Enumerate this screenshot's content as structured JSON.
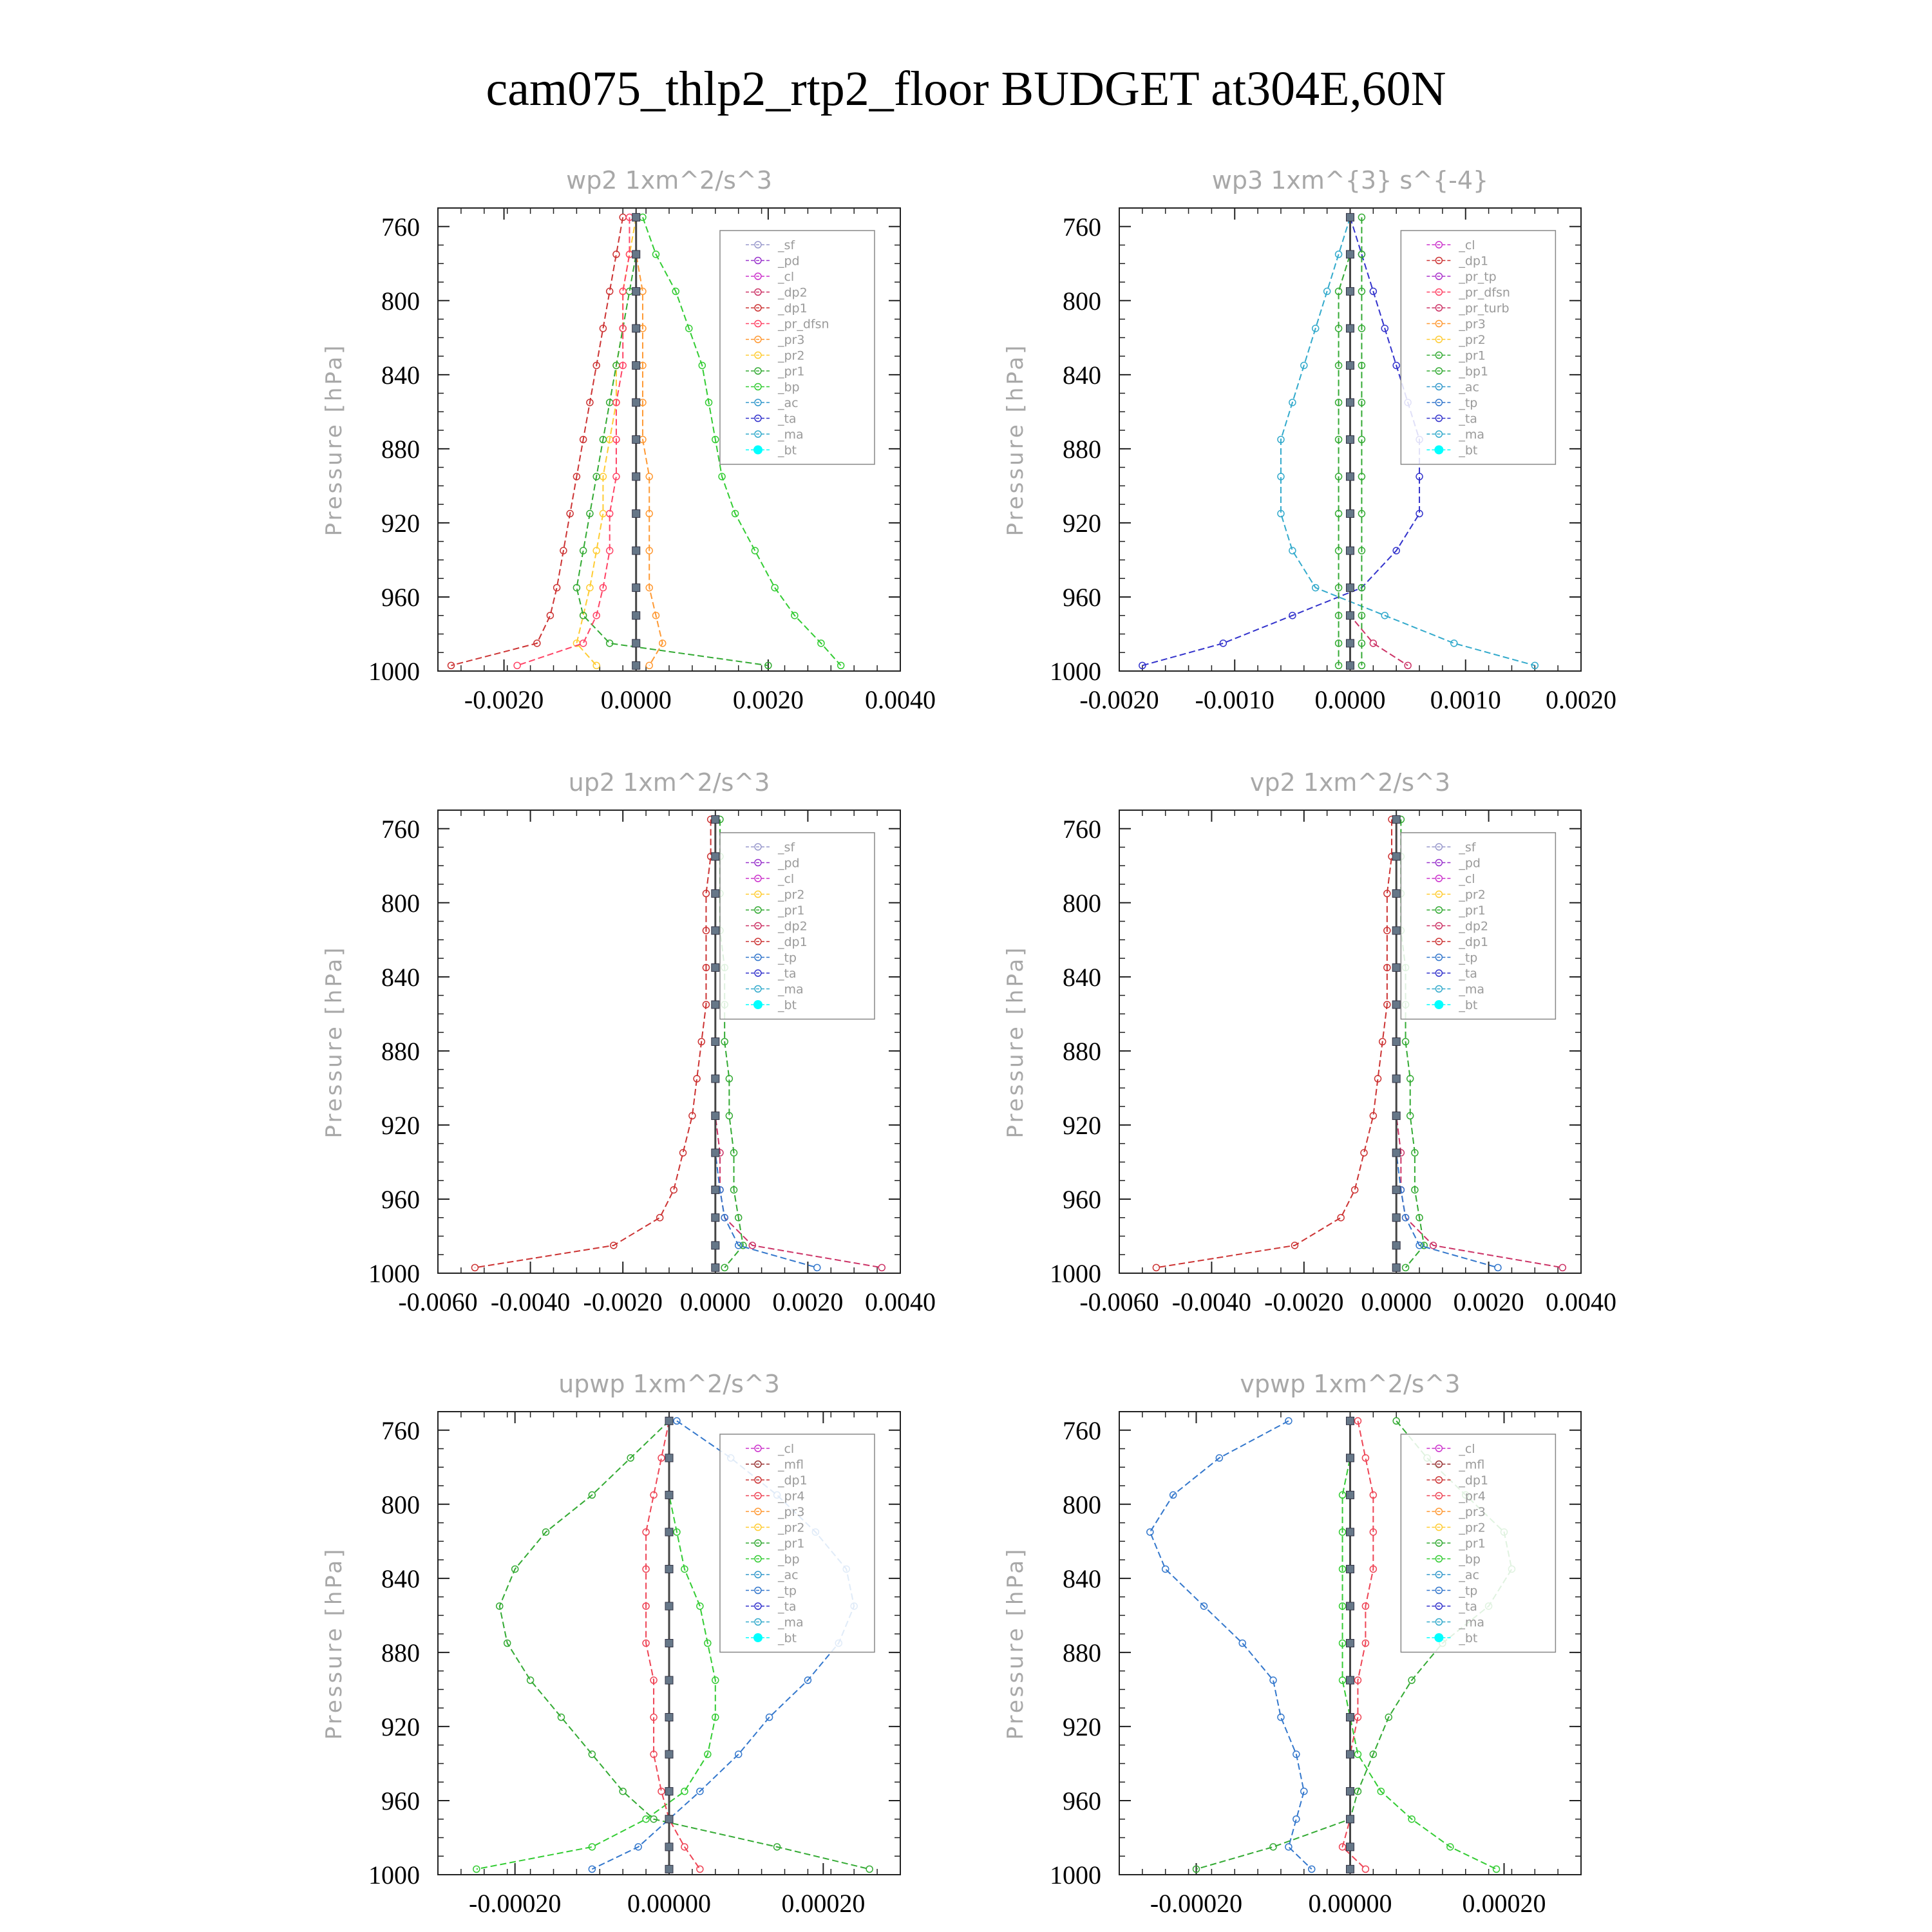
{
  "figure_title": "cam075_thlp2_rtp2_floor  BUDGET at304E,60N",
  "colors": {
    "_sf": "#9999cc",
    "_pd": "#9933cc",
    "_cl": "#cc33cc",
    "_dp2": "#cc3366",
    "_dp1": "#cc3333",
    "_pr_dfsn": "#ff4466",
    "_pr_tp": "#aa33cc",
    "_pr_turb": "#cc3366",
    "_pr4": "#ee4455",
    "_pr3": "#ff9933",
    "_pr2": "#ffcc33",
    "_pr1": "#33aa33",
    "_bp": "#33cc33",
    "_bp1": "#33aa33",
    "_ac": "#3399cc",
    "_tp": "#3377cc",
    "_ta": "#3333cc",
    "_ma": "#33aacc",
    "_bt": "#00ffff",
    "_mfl": "#993333"
  },
  "chart_data": [
    {
      "type": "line",
      "title": "wp2   1xm^2/s^3",
      "ylabel": "Pressure [hPa]",
      "ylim": [
        1000,
        750
      ],
      "xlim": [
        -0.003,
        0.004
      ],
      "yticks": [
        "760",
        "800",
        "840",
        "880",
        "920",
        "960",
        "1000"
      ],
      "xticks": [
        "-0.0020",
        "0.0000",
        "0.0020",
        "0.0040"
      ],
      "legend": [
        "_sf",
        "_pd",
        "_cl",
        "_dp2",
        "_dp1",
        "_pr_dfsn",
        "_pr3",
        "_pr2",
        "_pr1",
        "_bp",
        "_ac",
        "_ta",
        "_ma",
        "_bt"
      ],
      "series": [
        {
          "name": "_dp1",
          "x": [
            -0.0002,
            -0.0003,
            -0.0004,
            -0.0005,
            -0.0006,
            -0.0007,
            -0.0008,
            -0.0009,
            -0.001,
            -0.0011,
            -0.0012,
            -0.0013,
            -0.0015,
            -0.0028
          ]
        },
        {
          "name": "_pr2",
          "x": [
            0.0,
            -0.0001,
            -0.0002,
            -0.0002,
            -0.0003,
            -0.0003,
            -0.0004,
            -0.0005,
            -0.0005,
            -0.0006,
            -0.0007,
            -0.0008,
            -0.0009,
            -0.0006
          ]
        },
        {
          "name": "_pr3",
          "x": [
            0.0,
            0.0,
            0.0001,
            0.0001,
            0.0001,
            0.0001,
            0.0001,
            0.0002,
            0.0002,
            0.0002,
            0.0002,
            0.0003,
            0.0004,
            0.0002
          ]
        },
        {
          "name": "_bp",
          "x": [
            0.0001,
            0.0003,
            0.0006,
            0.0008,
            0.001,
            0.0011,
            0.0012,
            0.0013,
            0.0015,
            0.0018,
            0.0021,
            0.0024,
            0.0028,
            0.0031
          ]
        },
        {
          "name": "_pr1",
          "x": [
            0.0,
            0.0,
            -0.0001,
            -0.0002,
            -0.0003,
            -0.0004,
            -0.0005,
            -0.0006,
            -0.0007,
            -0.0008,
            -0.0009,
            -0.0008,
            -0.0004,
            0.002
          ]
        },
        {
          "name": "_pr_dfsn",
          "x": [
            -0.0001,
            -0.0001,
            -0.0002,
            -0.0002,
            -0.0002,
            -0.0003,
            -0.0003,
            -0.0003,
            -0.0004,
            -0.0004,
            -0.0005,
            -0.0006,
            -0.0008,
            -0.0018
          ]
        },
        {
          "name": "_bt",
          "x": [
            0,
            0,
            0,
            0,
            0,
            0,
            0,
            0,
            0,
            0,
            0,
            0,
            0,
            0
          ]
        }
      ]
    },
    {
      "type": "line",
      "title": "wp3   1xm^{3} s^{-4}",
      "ylabel": "Pressure [hPa]",
      "ylim": [
        1000,
        750
      ],
      "xlim": [
        -0.002,
        0.002
      ],
      "yticks": [
        "760",
        "800",
        "840",
        "880",
        "920",
        "960",
        "1000"
      ],
      "xticks": [
        "-0.0020",
        "-0.0010",
        "0.0000",
        "0.0010",
        "0.0020"
      ],
      "legend": [
        "_cl",
        "_dp1",
        "_pr_tp",
        "_pr_dfsn",
        "_pr_turb",
        "_pr3",
        "_pr2",
        "_pr1",
        "_bp1",
        "_ac",
        "_tp",
        "_ta",
        "_ma",
        "_bt"
      ],
      "series": [
        {
          "name": "_ta",
          "x": [
            0.0,
            0.0001,
            0.0002,
            0.0003,
            0.0004,
            0.0005,
            0.0006,
            0.0006,
            0.0006,
            0.0004,
            0.0001,
            -0.0005,
            -0.0011,
            -0.0018
          ]
        },
        {
          "name": "_ma",
          "x": [
            0.0,
            -0.0001,
            -0.0002,
            -0.0003,
            -0.0004,
            -0.0005,
            -0.0006,
            -0.0006,
            -0.0006,
            -0.0005,
            -0.0003,
            0.0003,
            0.0009,
            0.0016
          ]
        },
        {
          "name": "_bp1",
          "x": [
            0.0001,
            0.0001,
            0.0001,
            0.0001,
            0.0001,
            0.0001,
            0.0001,
            0.0001,
            0.0001,
            0.0001,
            0.0001,
            0.0001,
            0.0001,
            0.0001
          ]
        },
        {
          "name": "_pr1",
          "x": [
            0.0,
            0.0,
            -0.0001,
            -0.0001,
            -0.0001,
            -0.0001,
            -0.0001,
            -0.0001,
            -0.0001,
            -0.0001,
            -0.0001,
            -0.0001,
            -0.0001,
            -0.0001
          ]
        },
        {
          "name": "_pr_turb",
          "x": [
            0.0,
            0.0,
            0.0,
            0.0,
            0.0,
            0.0,
            0.0,
            0.0,
            0.0,
            0.0,
            0.0,
            0.0,
            0.0002,
            0.0005
          ]
        },
        {
          "name": "_bt",
          "x": [
            0,
            0,
            0,
            0,
            0,
            0,
            0,
            0,
            0,
            0,
            0,
            0,
            0,
            0
          ]
        }
      ]
    },
    {
      "type": "line",
      "title": "up2   1xm^2/s^3",
      "ylabel": "Pressure [hPa]",
      "ylim": [
        1000,
        750
      ],
      "xlim": [
        -0.006,
        0.004
      ],
      "yticks": [
        "760",
        "800",
        "840",
        "880",
        "920",
        "960",
        "1000"
      ],
      "xticks": [
        "-0.0060",
        "-0.0040",
        "-0.0020",
        "0.0000",
        "0.0020",
        "0.0040"
      ],
      "legend": [
        "_sf",
        "_pd",
        "_cl",
        "_pr2",
        "_pr1",
        "_dp2",
        "_dp1",
        "_tp",
        "_ta",
        "_ma",
        "_bt"
      ],
      "series": [
        {
          "name": "_dp1",
          "x": [
            -0.0001,
            -0.0001,
            -0.0002,
            -0.0002,
            -0.0002,
            -0.0002,
            -0.0003,
            -0.0004,
            -0.0005,
            -0.0007,
            -0.0009,
            -0.0012,
            -0.0022,
            -0.0052
          ]
        },
        {
          "name": "_pr1",
          "x": [
            0.0001,
            0.0001,
            0.0001,
            0.0001,
            0.0002,
            0.0002,
            0.0002,
            0.0003,
            0.0003,
            0.0004,
            0.0004,
            0.0005,
            0.0006,
            0.0002
          ]
        },
        {
          "name": "_dp2",
          "x": [
            0.0,
            0.0,
            0.0,
            0.0,
            0.0,
            0.0,
            0.0,
            0.0,
            0.0,
            0.0001,
            0.0001,
            0.0002,
            0.0008,
            0.0036
          ]
        },
        {
          "name": "_tp",
          "x": [
            0.0,
            0.0,
            0.0,
            0.0,
            0.0,
            0.0,
            0.0,
            0.0,
            0.0,
            0.0,
            0.0001,
            0.0002,
            0.0005,
            0.0022
          ]
        },
        {
          "name": "_bt",
          "x": [
            0,
            0,
            0,
            0,
            0,
            0,
            0,
            0,
            0,
            0,
            0,
            0,
            0,
            0
          ]
        }
      ]
    },
    {
      "type": "line",
      "title": "vp2   1xm^2/s^3",
      "ylabel": "Pressure [hPa]",
      "ylim": [
        1000,
        750
      ],
      "xlim": [
        -0.006,
        0.004
      ],
      "yticks": [
        "760",
        "800",
        "840",
        "880",
        "920",
        "960",
        "1000"
      ],
      "xticks": [
        "-0.0060",
        "-0.0040",
        "-0.0020",
        "0.0000",
        "0.0020",
        "0.0040"
      ],
      "legend": [
        "_sf",
        "_pd",
        "_cl",
        "_pr2",
        "_pr1",
        "_dp2",
        "_dp1",
        "_tp",
        "_ta",
        "_ma",
        "_bt"
      ],
      "series": [
        {
          "name": "_dp1",
          "x": [
            -0.0001,
            -0.0001,
            -0.0002,
            -0.0002,
            -0.0002,
            -0.0002,
            -0.0003,
            -0.0004,
            -0.0005,
            -0.0007,
            -0.0009,
            -0.0012,
            -0.0022,
            -0.0052
          ]
        },
        {
          "name": "_pr1",
          "x": [
            0.0001,
            0.0001,
            0.0001,
            0.0001,
            0.0002,
            0.0002,
            0.0002,
            0.0003,
            0.0003,
            0.0004,
            0.0004,
            0.0005,
            0.0006,
            0.0002
          ]
        },
        {
          "name": "_dp2",
          "x": [
            0.0,
            0.0,
            0.0,
            0.0,
            0.0,
            0.0,
            0.0,
            0.0,
            0.0,
            0.0001,
            0.0001,
            0.0002,
            0.0008,
            0.0036
          ]
        },
        {
          "name": "_tp",
          "x": [
            0.0,
            0.0,
            0.0,
            0.0,
            0.0,
            0.0,
            0.0,
            0.0,
            0.0,
            0.0,
            0.0001,
            0.0002,
            0.0005,
            0.0022
          ]
        },
        {
          "name": "_bt",
          "x": [
            0,
            0,
            0,
            0,
            0,
            0,
            0,
            0,
            0,
            0,
            0,
            0,
            0,
            0
          ]
        }
      ]
    },
    {
      "type": "line",
      "title": "upwp   1xm^2/s^3",
      "ylabel": "Pressure [hPa]",
      "ylim": [
        1000,
        750
      ],
      "xlim": [
        -0.0003,
        0.0003
      ],
      "yticks": [
        "760",
        "800",
        "840",
        "880",
        "920",
        "960",
        "1000"
      ],
      "xticks": [
        "-0.00020",
        "0.00000",
        "0.00020"
      ],
      "legend": [
        "_cl",
        "_mfl",
        "_dp1",
        "_pr4",
        "_pr3",
        "_pr2",
        "_pr1",
        "_bp",
        "_ac",
        "_tp",
        "_ta",
        "_ma",
        "_bt"
      ],
      "series": [
        {
          "name": "_pr1",
          "x": [
            0.0,
            -5e-05,
            -0.0001,
            -0.00016,
            -0.0002,
            -0.00022,
            -0.00021,
            -0.00018,
            -0.00014,
            -0.0001,
            -6e-05,
            -2e-05,
            0.00014,
            0.00026
          ]
        },
        {
          "name": "_tp",
          "x": [
            1e-05,
            8e-05,
            0.00014,
            0.00019,
            0.00023,
            0.00024,
            0.00022,
            0.00018,
            0.00013,
            9e-05,
            4e-05,
            0.0,
            -4e-05,
            -0.0001
          ]
        },
        {
          "name": "_bp",
          "x": [
            0.0,
            0.0,
            0.0,
            1e-05,
            2e-05,
            4e-05,
            5e-05,
            6e-05,
            6e-05,
            5e-05,
            2e-05,
            -3e-05,
            -0.0001,
            -0.00025
          ]
        },
        {
          "name": "_pr4",
          "x": [
            0.0,
            -1e-05,
            -2e-05,
            -3e-05,
            -3e-05,
            -3e-05,
            -3e-05,
            -2e-05,
            -2e-05,
            -2e-05,
            -1e-05,
            0.0,
            2e-05,
            4e-05
          ]
        },
        {
          "name": "_bt",
          "x": [
            0,
            0,
            0,
            0,
            0,
            0,
            0,
            0,
            0,
            0,
            0,
            0,
            0,
            0
          ]
        }
      ]
    },
    {
      "type": "line",
      "title": "vpwp   1xm^2/s^3",
      "ylabel": "Pressure [hPa]",
      "ylim": [
        1000,
        750
      ],
      "xlim": [
        -0.0003,
        0.0003
      ],
      "yticks": [
        "760",
        "800",
        "840",
        "880",
        "920",
        "960",
        "1000"
      ],
      "xticks": [
        "-0.00020",
        "0.00000",
        "0.00020"
      ],
      "legend": [
        "_cl",
        "_mfl",
        "_dp1",
        "_pr4",
        "_pr3",
        "_pr2",
        "_pr1",
        "_bp",
        "_ac",
        "_tp",
        "_ta",
        "_ma",
        "_bt"
      ],
      "series": [
        {
          "name": "_tp",
          "x": [
            -8e-05,
            -0.00017,
            -0.00023,
            -0.00026,
            -0.00024,
            -0.00019,
            -0.00014,
            -0.0001,
            -9e-05,
            -7e-05,
            -6e-05,
            -7e-05,
            -8e-05,
            -5e-05
          ]
        },
        {
          "name": "_pr1",
          "x": [
            6e-05,
            0.0001,
            0.00015,
            0.0002,
            0.00021,
            0.00018,
            0.00012,
            8e-05,
            5e-05,
            3e-05,
            1e-05,
            0.0,
            -0.0001,
            -0.0002
          ]
        },
        {
          "name": "_bp",
          "x": [
            0.0,
            0.0,
            -1e-05,
            -1e-05,
            -1e-05,
            -1e-05,
            -1e-05,
            -1e-05,
            0.0,
            1e-05,
            4e-05,
            8e-05,
            0.00013,
            0.00019
          ]
        },
        {
          "name": "_pr4",
          "x": [
            1e-05,
            2e-05,
            3e-05,
            3e-05,
            3e-05,
            2e-05,
            2e-05,
            1e-05,
            1e-05,
            0.0,
            0.0,
            0.0,
            -1e-05,
            2e-05
          ]
        },
        {
          "name": "_bt",
          "x": [
            0,
            0,
            0,
            0,
            0,
            0,
            0,
            0,
            0,
            0,
            0,
            0,
            0,
            0
          ]
        }
      ]
    }
  ]
}
